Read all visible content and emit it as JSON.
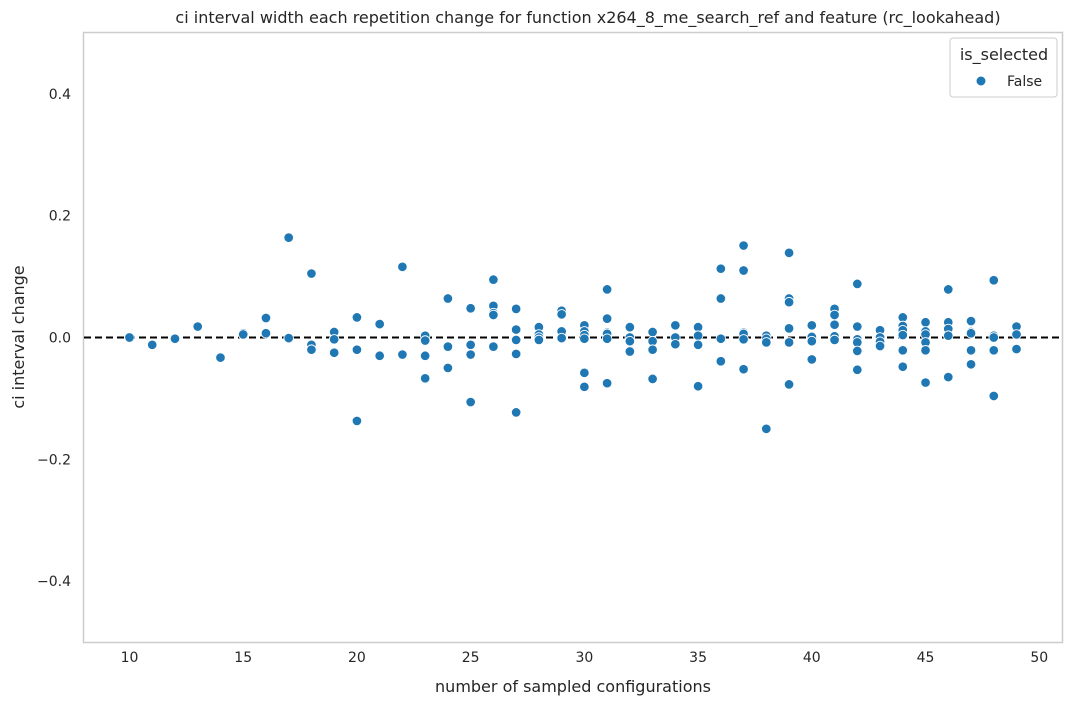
{
  "chart_data": {
    "type": "scatter",
    "title": "ci interval width each repetition change for function x264_8_me_search_ref and feature (rc_lookahead)",
    "xlabel": "number of sampled configurations",
    "ylabel": "ci interval change",
    "xlim": [
      8,
      51
    ],
    "ylim": [
      -0.5,
      0.5
    ],
    "xticks": [
      10,
      15,
      20,
      25,
      30,
      35,
      40,
      45,
      50
    ],
    "yticks": [
      -0.4,
      -0.2,
      0.0,
      0.2,
      0.4
    ],
    "ytick_labels": [
      "−0.4",
      "−0.2",
      "0.0",
      "0.2",
      "0.4"
    ],
    "grid": false,
    "reference_line": {
      "y": 0,
      "style": "dashed",
      "color": "#000000"
    },
    "legend": {
      "title": "is_selected",
      "placement": "top-right"
    },
    "series": [
      {
        "name": "False",
        "color": "#1f77b4",
        "points": [
          [
            10,
            0.0
          ],
          [
            11,
            -0.012
          ],
          [
            12,
            -0.002
          ],
          [
            13,
            0.018
          ],
          [
            14,
            -0.033
          ],
          [
            15,
            0.007
          ],
          [
            15,
            0.005
          ],
          [
            16,
            0.032
          ],
          [
            16,
            0.007
          ],
          [
            17,
            0.164
          ],
          [
            17,
            -0.001
          ],
          [
            18,
            0.105
          ],
          [
            18,
            -0.012
          ],
          [
            18,
            -0.02
          ],
          [
            19,
            0.009
          ],
          [
            19,
            -0.003
          ],
          [
            19,
            -0.025
          ],
          [
            20,
            0.033
          ],
          [
            20,
            -0.02
          ],
          [
            20,
            -0.137
          ],
          [
            21,
            0.022
          ],
          [
            21,
            -0.03
          ],
          [
            22,
            0.116
          ],
          [
            22,
            -0.028
          ],
          [
            23,
            0.003
          ],
          [
            23,
            -0.005
          ],
          [
            23,
            -0.03
          ],
          [
            23,
            -0.067
          ],
          [
            24,
            0.064
          ],
          [
            24,
            -0.015
          ],
          [
            24,
            -0.05
          ],
          [
            25,
            0.048
          ],
          [
            25,
            -0.012
          ],
          [
            25,
            -0.028
          ],
          [
            25,
            -0.106
          ],
          [
            26,
            0.095
          ],
          [
            26,
            0.052
          ],
          [
            26,
            0.04
          ],
          [
            26,
            0.037
          ],
          [
            26,
            -0.015
          ],
          [
            27,
            0.047
          ],
          [
            27,
            0.013
          ],
          [
            27,
            -0.004
          ],
          [
            27,
            -0.027
          ],
          [
            27,
            -0.123
          ],
          [
            28,
            0.017
          ],
          [
            28,
            0.005
          ],
          [
            28,
            0.0
          ],
          [
            28,
            -0.004
          ],
          [
            29,
            0.044
          ],
          [
            29,
            0.038
          ],
          [
            29,
            0.01
          ],
          [
            29,
            -0.001
          ],
          [
            30,
            0.02
          ],
          [
            30,
            0.01
          ],
          [
            30,
            0.004
          ],
          [
            30,
            -0.002
          ],
          [
            30,
            -0.058
          ],
          [
            30,
            -0.081
          ],
          [
            31,
            0.079
          ],
          [
            31,
            0.031
          ],
          [
            31,
            0.008
          ],
          [
            31,
            0.006
          ],
          [
            31,
            -0.002
          ],
          [
            31,
            -0.075
          ],
          [
            32,
            0.017
          ],
          [
            32,
            0.0
          ],
          [
            32,
            -0.006
          ],
          [
            32,
            -0.023
          ],
          [
            33,
            0.009
          ],
          [
            33,
            -0.006
          ],
          [
            33,
            -0.02
          ],
          [
            33,
            -0.068
          ],
          [
            34,
            0.02
          ],
          [
            34,
            0.0
          ],
          [
            34,
            -0.011
          ],
          [
            35,
            0.017
          ],
          [
            35,
            0.003
          ],
          [
            35,
            -0.012
          ],
          [
            35,
            -0.08
          ],
          [
            36,
            0.113
          ],
          [
            36,
            0.064
          ],
          [
            36,
            -0.002
          ],
          [
            36,
            -0.039
          ],
          [
            37,
            0.151
          ],
          [
            37,
            0.11
          ],
          [
            37,
            0.008
          ],
          [
            37,
            0.006
          ],
          [
            37,
            -0.003
          ],
          [
            37,
            -0.052
          ],
          [
            38,
            0.003
          ],
          [
            38,
            -0.002
          ],
          [
            38,
            -0.008
          ],
          [
            38,
            -0.15
          ],
          [
            39,
            0.139
          ],
          [
            39,
            0.064
          ],
          [
            39,
            0.058
          ],
          [
            39,
            0.015
          ],
          [
            39,
            -0.008
          ],
          [
            39,
            -0.077
          ],
          [
            40,
            0.02
          ],
          [
            40,
            0.001
          ],
          [
            40,
            -0.006
          ],
          [
            40,
            -0.036
          ],
          [
            41,
            0.047
          ],
          [
            41,
            0.037
          ],
          [
            41,
            0.021
          ],
          [
            41,
            0.002
          ],
          [
            41,
            -0.004
          ],
          [
            42,
            0.088
          ],
          [
            42,
            0.018
          ],
          [
            42,
            -0.003
          ],
          [
            42,
            -0.008
          ],
          [
            42,
            -0.022
          ],
          [
            42,
            -0.053
          ],
          [
            43,
            0.012
          ],
          [
            43,
            0.0
          ],
          [
            43,
            -0.007
          ],
          [
            43,
            -0.014
          ],
          [
            44,
            0.033
          ],
          [
            44,
            0.019
          ],
          [
            44,
            0.012
          ],
          [
            44,
            0.004
          ],
          [
            44,
            -0.021
          ],
          [
            44,
            -0.048
          ],
          [
            45,
            0.025
          ],
          [
            45,
            0.01
          ],
          [
            45,
            0.005
          ],
          [
            45,
            -0.008
          ],
          [
            45,
            -0.021
          ],
          [
            45,
            -0.074
          ],
          [
            46,
            0.079
          ],
          [
            46,
            0.025
          ],
          [
            46,
            0.014
          ],
          [
            46,
            0.003
          ],
          [
            46,
            -0.065
          ],
          [
            47,
            0.027
          ],
          [
            47,
            0.009
          ],
          [
            47,
            0.007
          ],
          [
            47,
            -0.021
          ],
          [
            47,
            -0.044
          ],
          [
            48,
            0.094
          ],
          [
            48,
            0.003
          ],
          [
            48,
            0.0
          ],
          [
            48,
            -0.021
          ],
          [
            48,
            -0.096
          ],
          [
            49,
            0.018
          ],
          [
            49,
            0.005
          ],
          [
            49,
            -0.019
          ]
        ]
      }
    ]
  }
}
